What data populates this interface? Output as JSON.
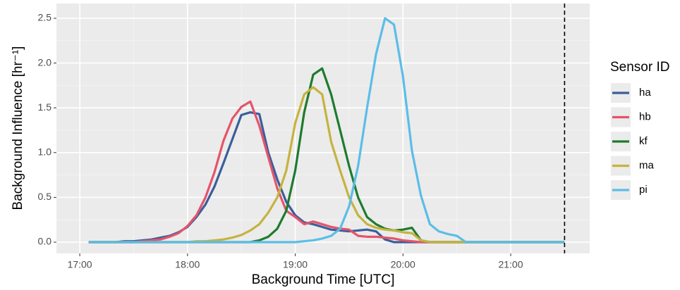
{
  "chart_data": {
    "type": "line",
    "xlabel": "Background Time [UTC]",
    "ylabel": "Background Influence [hr⁻¹]",
    "legend_title": "Sensor ID",
    "legend_position": "right",
    "grid": true,
    "x": [
      "17:05",
      "17:10",
      "17:15",
      "17:20",
      "17:25",
      "17:30",
      "17:35",
      "17:40",
      "17:45",
      "17:50",
      "17:55",
      "18:00",
      "18:05",
      "18:10",
      "18:15",
      "18:20",
      "18:25",
      "18:30",
      "18:35",
      "18:40",
      "18:45",
      "18:50",
      "18:55",
      "19:00",
      "19:05",
      "19:10",
      "19:15",
      "19:20",
      "19:25",
      "19:30",
      "19:35",
      "19:40",
      "19:45",
      "19:50",
      "19:55",
      "20:00",
      "20:05",
      "20:10",
      "20:15",
      "20:20",
      "20:25",
      "20:30",
      "20:35",
      "20:40",
      "20:45",
      "20:50",
      "20:55",
      "21:00",
      "21:05",
      "21:10",
      "21:15",
      "21:20",
      "21:25",
      "21:30"
    ],
    "series": [
      {
        "name": "ha",
        "color": "#3a5e9c",
        "values": [
          0,
          0,
          0,
          0,
          0.01,
          0.01,
          0.02,
          0.03,
          0.05,
          0.07,
          0.11,
          0.17,
          0.28,
          0.42,
          0.62,
          0.88,
          1.15,
          1.42,
          1.45,
          1.43,
          1.0,
          0.7,
          0.45,
          0.3,
          0.22,
          0.2,
          0.17,
          0.14,
          0.13,
          0.12,
          0.13,
          0.14,
          0.12,
          0.03,
          0,
          0,
          0,
          0,
          0,
          0,
          0,
          0,
          0,
          0,
          0,
          0,
          0,
          0,
          0,
          0,
          0,
          0,
          0,
          0
        ]
      },
      {
        "name": "hb",
        "color": "#e4546a",
        "values": [
          0,
          0,
          0,
          0,
          0,
          0,
          0.01,
          0.02,
          0.03,
          0.06,
          0.1,
          0.18,
          0.3,
          0.5,
          0.78,
          1.13,
          1.38,
          1.51,
          1.57,
          1.3,
          0.95,
          0.6,
          0.35,
          0.28,
          0.2,
          0.23,
          0.2,
          0.17,
          0.15,
          0.14,
          0.07,
          0.06,
          0.06,
          0.05,
          0.04,
          0.02,
          0.01,
          0,
          0,
          0,
          0,
          0,
          0,
          0,
          0,
          0,
          0,
          0,
          0,
          0,
          0,
          0,
          0,
          0
        ]
      },
      {
        "name": "kf",
        "color": "#1e7b2e",
        "values": [
          0,
          0,
          0,
          0,
          0,
          0,
          0,
          0,
          0,
          0,
          0,
          0,
          0,
          0,
          0,
          0,
          0,
          0,
          0,
          0.02,
          0.06,
          0.15,
          0.35,
          0.8,
          1.45,
          1.87,
          1.94,
          1.65,
          1.25,
          0.85,
          0.5,
          0.28,
          0.2,
          0.15,
          0.13,
          0.14,
          0.16,
          0.02,
          0,
          0,
          0,
          0,
          0,
          0,
          0,
          0,
          0,
          0,
          0,
          0,
          0,
          0,
          0,
          0
        ]
      },
      {
        "name": "ma",
        "color": "#c5b33f",
        "values": [
          0,
          0,
          0,
          0,
          0,
          0,
          0,
          0,
          0,
          0,
          0,
          0,
          0.01,
          0.01,
          0.02,
          0.03,
          0.05,
          0.08,
          0.13,
          0.2,
          0.33,
          0.5,
          0.8,
          1.33,
          1.65,
          1.73,
          1.65,
          1.12,
          0.8,
          0.5,
          0.3,
          0.2,
          0.16,
          0.14,
          0.13,
          0.11,
          0.1,
          0.02,
          0,
          0,
          0,
          0,
          0,
          0,
          0,
          0,
          0,
          0,
          0,
          0,
          0,
          0,
          0,
          0
        ]
      },
      {
        "name": "pi",
        "color": "#5bbde8",
        "values": [
          0,
          0,
          0,
          0,
          0,
          0,
          0,
          0,
          0,
          0,
          0,
          0,
          0,
          0,
          0,
          0,
          0,
          0,
          0,
          0,
          0,
          0,
          0,
          0,
          0.01,
          0.02,
          0.04,
          0.07,
          0.15,
          0.4,
          0.85,
          1.5,
          2.1,
          2.5,
          2.43,
          1.85,
          1.02,
          0.52,
          0.2,
          0.12,
          0.09,
          0.07,
          0,
          0,
          0,
          0,
          0,
          0,
          0,
          0,
          0,
          0,
          0,
          0
        ]
      }
    ],
    "vline": "21:30",
    "xlim": [
      "16:47",
      "21:44"
    ],
    "xticks": [
      "17:00",
      "18:00",
      "19:00",
      "20:00",
      "21:00"
    ],
    "ylim": [
      -0.126,
      2.665
    ],
    "yticks": [
      {
        "value": 0,
        "label": "0.0"
      },
      {
        "value": 0.5,
        "label": "0.5"
      },
      {
        "value": 1,
        "label": "1.0"
      },
      {
        "value": 1.5,
        "label": "1.5"
      },
      {
        "value": 2,
        "label": "2.0"
      },
      {
        "value": 2.5,
        "label": "2.5"
      }
    ]
  }
}
